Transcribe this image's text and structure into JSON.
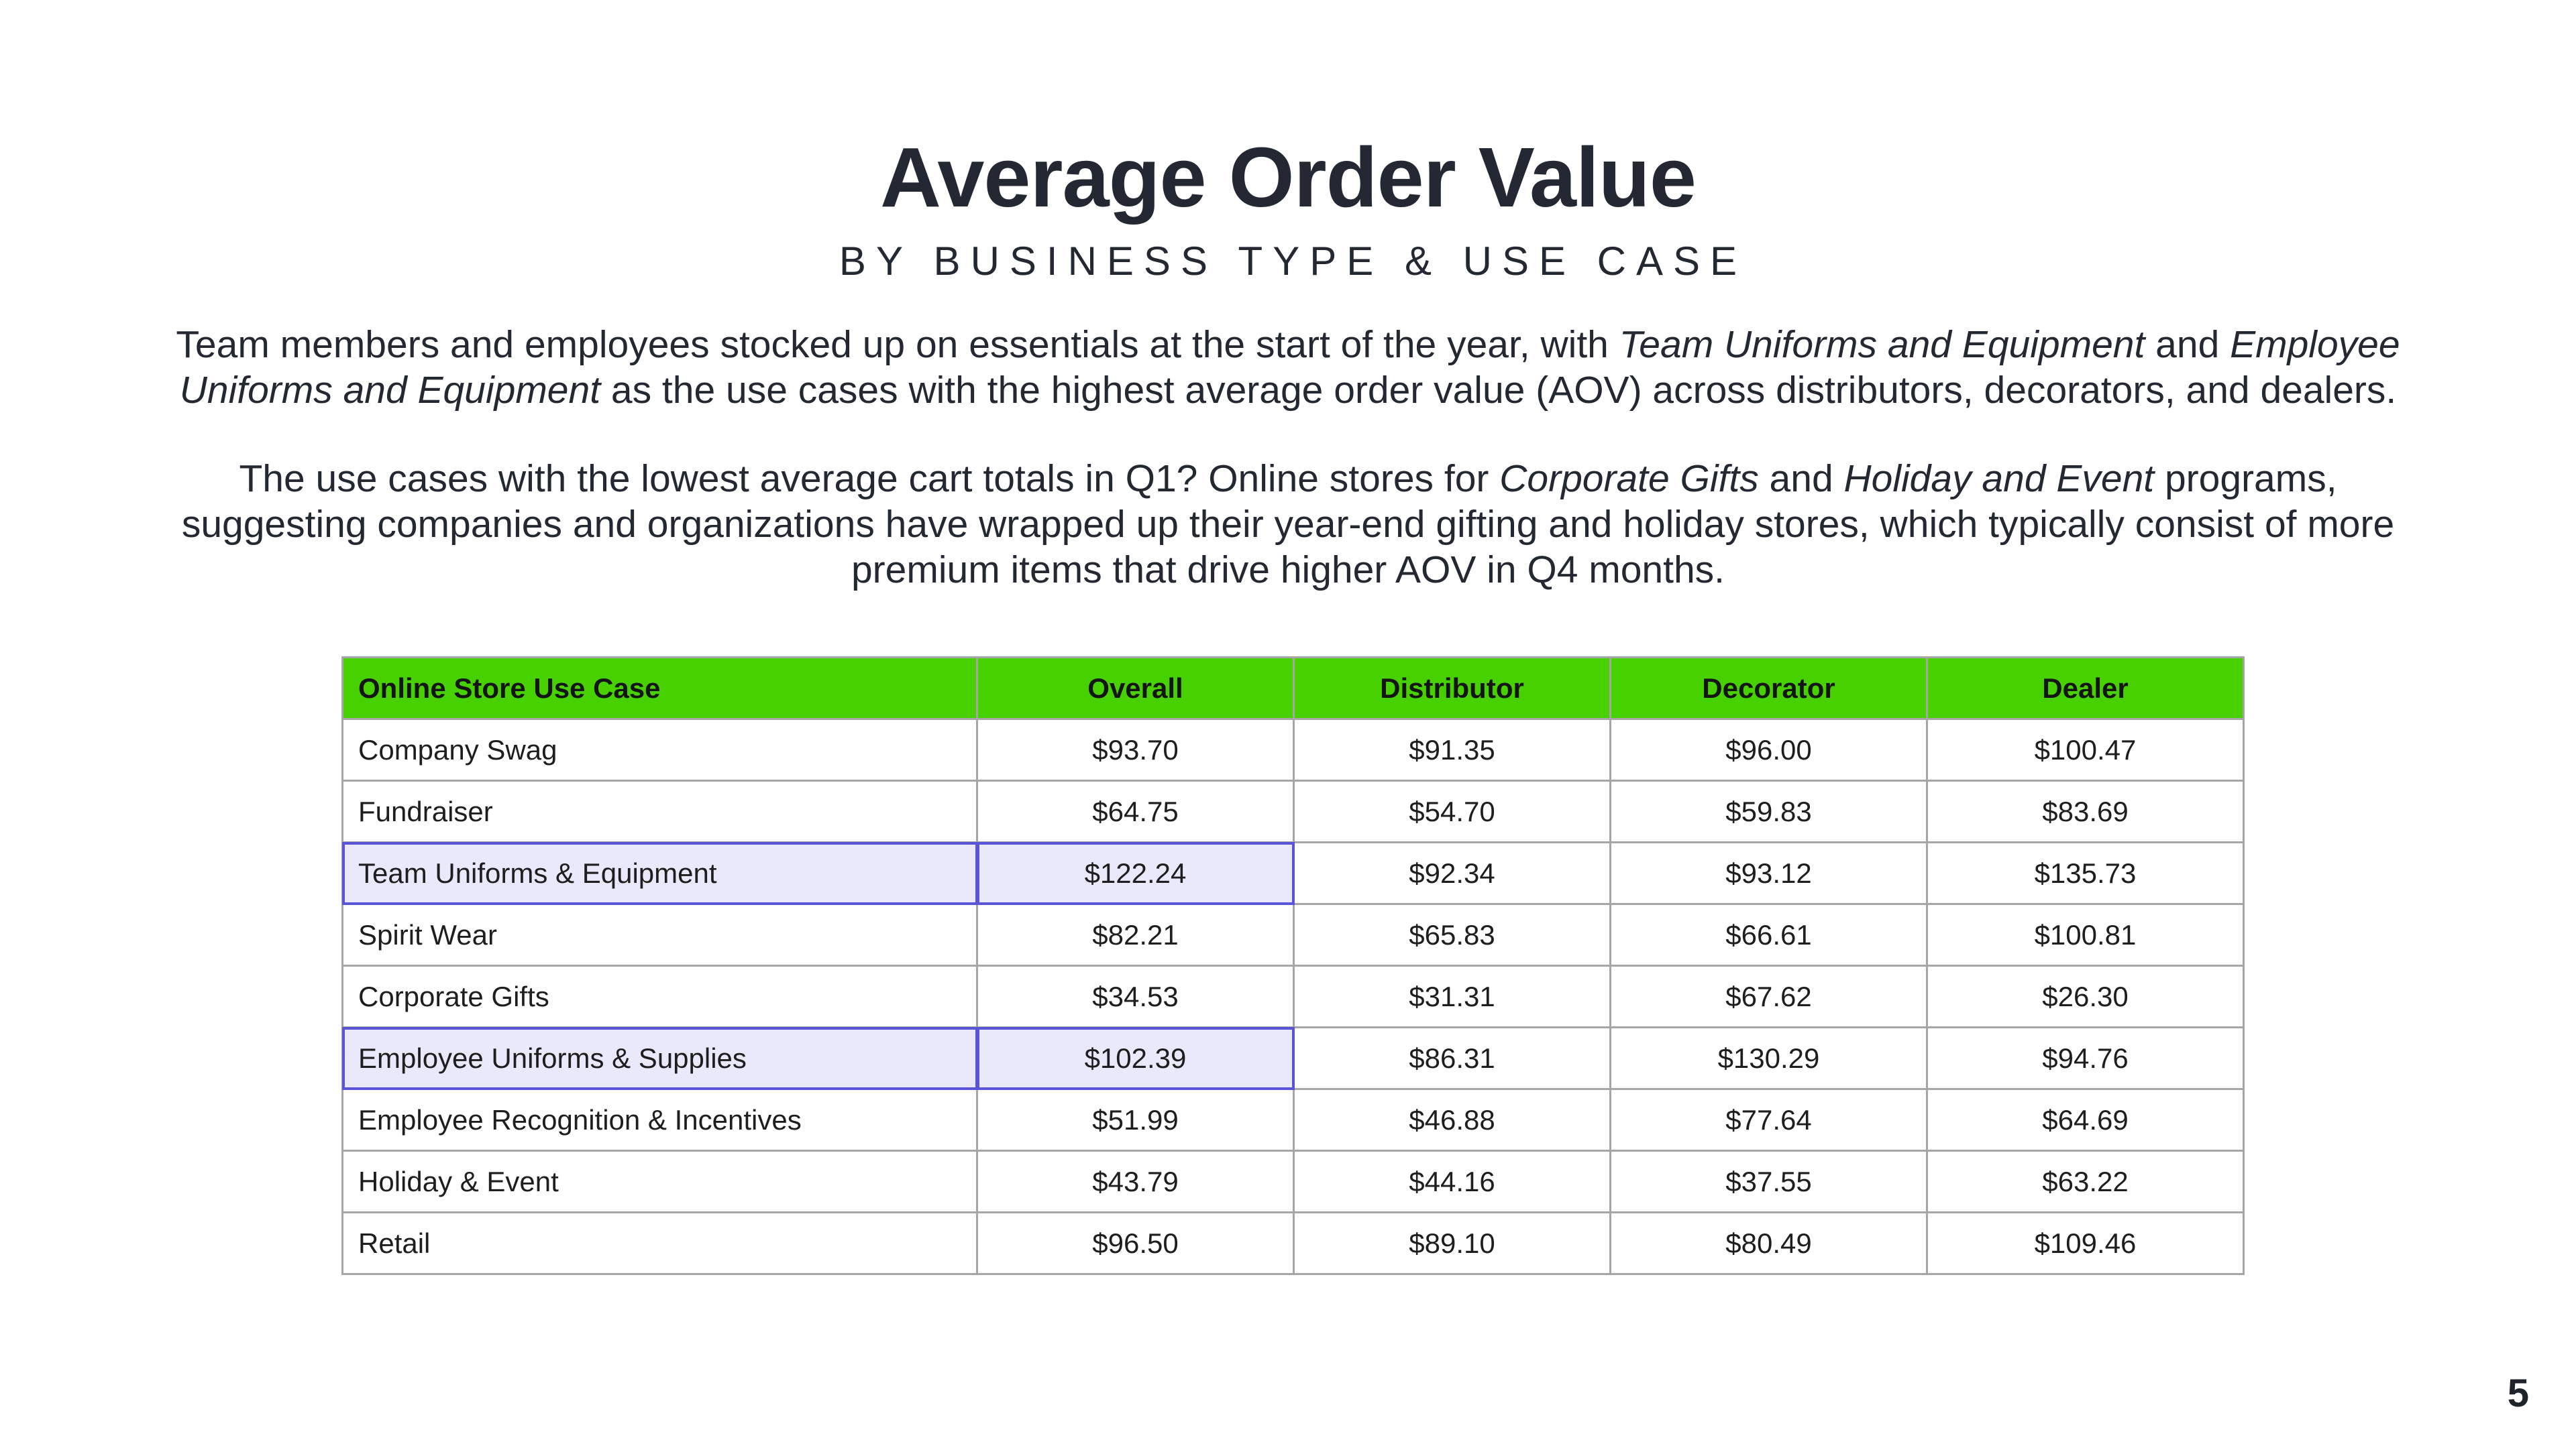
{
  "title": "Average Order Value",
  "subtitle": "BY BUSINESS TYPE & USE CASE",
  "paragraph1": {
    "a": "Team members and employees stocked up on essentials at the start of the year, with ",
    "b": "Team Uniforms and Equipment",
    "c": " and ",
    "d": "Employee Uniforms and Equipment",
    "e": " as the use cases with the highest average order value (AOV) across distributors, decorators, and dealers."
  },
  "paragraph2": {
    "a": "The use cases with the lowest average cart totals in Q1? Online stores for ",
    "b": "Corporate Gifts",
    "c": " and ",
    "d": "Holiday and Event",
    "e": " programs, suggesting companies and organizations have wrapped up their year-end gifting and holiday stores, which typically consist of more premium items that drive higher AOV in Q4 months."
  },
  "page_number": "5",
  "colors": {
    "header_green": "#48d100",
    "highlight_fill": "#e9e9fb",
    "highlight_border": "#5a55d6"
  },
  "chart_data": {
    "type": "table",
    "columns": [
      "Online Store Use Case",
      "Overall",
      "Distributor",
      "Decorator",
      "Dealer"
    ],
    "rows": [
      {
        "use_case": "Company Swag",
        "overall": "$93.70",
        "distributor": "$91.35",
        "decorator": "$96.00",
        "dealer": "$100.47",
        "highlight": false
      },
      {
        "use_case": "Fundraiser",
        "overall": "$64.75",
        "distributor": "$54.70",
        "decorator": "$59.83",
        "dealer": "$83.69",
        "highlight": false
      },
      {
        "use_case": "Team Uniforms & Equipment",
        "overall": "$122.24",
        "distributor": "$92.34",
        "decorator": "$93.12",
        "dealer": "$135.73",
        "highlight": true
      },
      {
        "use_case": "Spirit Wear",
        "overall": "$82.21",
        "distributor": "$65.83",
        "decorator": "$66.61",
        "dealer": "$100.81",
        "highlight": false
      },
      {
        "use_case": "Corporate Gifts",
        "overall": "$34.53",
        "distributor": "$31.31",
        "decorator": "$67.62",
        "dealer": "$26.30",
        "highlight": false
      },
      {
        "use_case": "Employee Uniforms & Supplies",
        "overall": "$102.39",
        "distributor": "$86.31",
        "decorator": "$130.29",
        "dealer": "$94.76",
        "highlight": true
      },
      {
        "use_case": "Employee Recognition & Incentives",
        "overall": "$51.99",
        "distributor": "$46.88",
        "decorator": "$77.64",
        "dealer": "$64.69",
        "highlight": false
      },
      {
        "use_case": "Holiday & Event",
        "overall": "$43.79",
        "distributor": "$44.16",
        "decorator": "$37.55",
        "dealer": "$63.22",
        "highlight": false
      },
      {
        "use_case": "Retail",
        "overall": "$96.50",
        "distributor": "$89.10",
        "decorator": "$80.49",
        "dealer": "$109.46",
        "highlight": false
      }
    ]
  }
}
